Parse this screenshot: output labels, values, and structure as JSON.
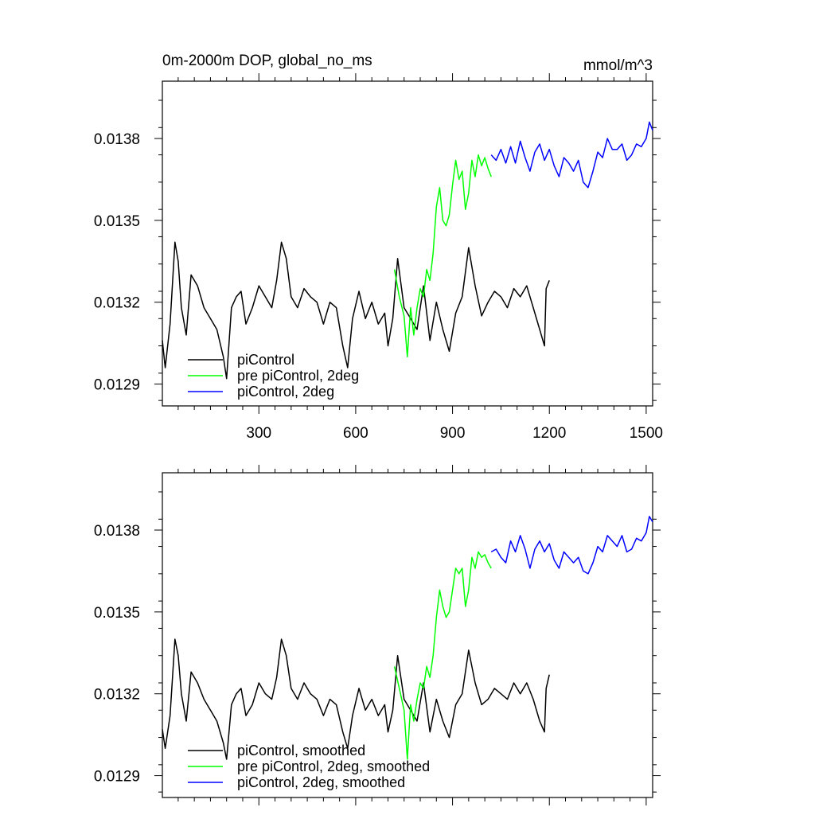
{
  "colors": {
    "piControl": "#000000",
    "pre_piControl_2deg": "#00ff00",
    "piControl_2deg": "#0000ff"
  },
  "chart_data": [
    {
      "type": "line",
      "title": "0m-2000m DOP, global_no_ms",
      "units": "mmol/m^3",
      "xlim": [
        1,
        1520
      ],
      "ylim": [
        0.01282,
        0.01401
      ],
      "xticks": [
        300,
        600,
        900,
        1200,
        1500
      ],
      "xtick_labels": [
        "300",
        "600",
        "900",
        "1200",
        "1500"
      ],
      "yticks": [
        0.0129,
        0.0132,
        0.0135,
        0.0138
      ],
      "ytick_labels": [
        "0.0129",
        "0.0132",
        "0.0135",
        "0.0138"
      ],
      "legend_position": "bottom-left",
      "series": [
        {
          "name": "piControl",
          "color": "#000000",
          "x": [
            1,
            10,
            25,
            40,
            50,
            60,
            75,
            90,
            110,
            130,
            150,
            170,
            190,
            200,
            215,
            230,
            245,
            260,
            280,
            300,
            320,
            340,
            355,
            370,
            385,
            400,
            420,
            440,
            460,
            480,
            500,
            520,
            540,
            560,
            575,
            590,
            610,
            630,
            650,
            670,
            690,
            700,
            715,
            730,
            750,
            770,
            790,
            810,
            830,
            850,
            870,
            890,
            910,
            930,
            950,
            970,
            990,
            1010,
            1030,
            1050,
            1070,
            1090,
            1110,
            1130,
            1150,
            1170,
            1185,
            1190,
            1200
          ],
          "y": [
            0.01306,
            0.01296,
            0.01312,
            0.01342,
            0.01335,
            0.01318,
            0.01308,
            0.0133,
            0.01326,
            0.01318,
            0.01314,
            0.0131,
            0.013,
            0.01292,
            0.01318,
            0.01322,
            0.01324,
            0.01312,
            0.01318,
            0.01326,
            0.01322,
            0.01318,
            0.01328,
            0.01342,
            0.01336,
            0.01322,
            0.01318,
            0.01325,
            0.01322,
            0.0132,
            0.01312,
            0.0132,
            0.01318,
            0.01304,
            0.01296,
            0.01314,
            0.01324,
            0.01314,
            0.0132,
            0.01312,
            0.01316,
            0.01304,
            0.01314,
            0.01336,
            0.01318,
            0.01314,
            0.0131,
            0.01326,
            0.01306,
            0.0132,
            0.0131,
            0.01302,
            0.01316,
            0.01322,
            0.0134,
            0.01326,
            0.01315,
            0.0132,
            0.01324,
            0.01322,
            0.01318,
            0.01325,
            0.01322,
            0.01326,
            0.01318,
            0.0131,
            0.01304,
            0.01325,
            0.01328
          ]
        },
        {
          "name": "pre piControl, 2deg",
          "color": "#00ff00",
          "x": [
            720,
            735,
            750,
            760,
            770,
            780,
            790,
            800,
            810,
            820,
            830,
            840,
            850,
            860,
            870,
            880,
            890,
            900,
            910,
            920,
            930,
            940,
            950,
            960,
            970,
            980,
            990,
            1000,
            1010,
            1020
          ],
          "y": [
            0.01332,
            0.01322,
            0.01315,
            0.013,
            0.01318,
            0.01308,
            0.01318,
            0.01325,
            0.01322,
            0.01332,
            0.01328,
            0.01338,
            0.01355,
            0.01362,
            0.0135,
            0.01348,
            0.01352,
            0.01363,
            0.01372,
            0.01365,
            0.01368,
            0.01354,
            0.0136,
            0.01372,
            0.01366,
            0.01374,
            0.0137,
            0.01373,
            0.01369,
            0.01366
          ]
        },
        {
          "name": "piControl, 2deg",
          "color": "#0000ff",
          "x": [
            1020,
            1035,
            1050,
            1065,
            1080,
            1095,
            1110,
            1125,
            1140,
            1155,
            1170,
            1185,
            1200,
            1215,
            1230,
            1245,
            1260,
            1275,
            1290,
            1305,
            1320,
            1335,
            1350,
            1365,
            1380,
            1395,
            1410,
            1425,
            1440,
            1455,
            1470,
            1485,
            1500,
            1510,
            1520
          ],
          "y": [
            0.01374,
            0.01372,
            0.01376,
            0.01371,
            0.01377,
            0.01371,
            0.01379,
            0.01373,
            0.01368,
            0.01375,
            0.01378,
            0.01372,
            0.01376,
            0.0137,
            0.01366,
            0.01373,
            0.01371,
            0.01368,
            0.01372,
            0.01364,
            0.01362,
            0.01368,
            0.01375,
            0.01373,
            0.0138,
            0.01376,
            0.01376,
            0.01378,
            0.01372,
            0.01374,
            0.01378,
            0.01377,
            0.0138,
            0.01386,
            0.01383
          ]
        }
      ]
    },
    {
      "type": "line",
      "title": "",
      "units": "",
      "xlim": [
        1,
        1520
      ],
      "ylim": [
        0.01282,
        0.01401
      ],
      "xticks": [
        300,
        600,
        900,
        1200,
        1500
      ],
      "xtick_labels": [],
      "yticks": [
        0.0129,
        0.0132,
        0.0135,
        0.0138
      ],
      "ytick_labels": [
        "0.0129",
        "0.0132",
        "0.0135",
        "0.0138"
      ],
      "legend_position": "bottom-left",
      "series": [
        {
          "name": "piControl, smoothed",
          "color": "#000000",
          "x": [
            1,
            10,
            25,
            40,
            50,
            60,
            75,
            90,
            110,
            130,
            150,
            170,
            190,
            200,
            215,
            230,
            245,
            260,
            280,
            300,
            320,
            340,
            355,
            370,
            385,
            400,
            420,
            440,
            460,
            480,
            500,
            520,
            540,
            560,
            575,
            590,
            610,
            630,
            650,
            670,
            690,
            700,
            715,
            730,
            750,
            770,
            790,
            810,
            830,
            850,
            870,
            890,
            910,
            930,
            950,
            970,
            990,
            1010,
            1030,
            1050,
            1070,
            1090,
            1110,
            1130,
            1150,
            1170,
            1185,
            1190,
            1200
          ],
          "y": [
            0.01307,
            0.013,
            0.01312,
            0.0134,
            0.01334,
            0.0132,
            0.0131,
            0.01328,
            0.01324,
            0.01318,
            0.01314,
            0.0131,
            0.01302,
            0.01296,
            0.01316,
            0.0132,
            0.01322,
            0.01312,
            0.01316,
            0.01324,
            0.0132,
            0.01318,
            0.01326,
            0.0134,
            0.01334,
            0.01322,
            0.01318,
            0.01324,
            0.0132,
            0.01318,
            0.01312,
            0.01318,
            0.01316,
            0.01306,
            0.013,
            0.01312,
            0.01322,
            0.01314,
            0.01318,
            0.01312,
            0.01316,
            0.01306,
            0.01314,
            0.01334,
            0.01318,
            0.01314,
            0.0131,
            0.01324,
            0.01306,
            0.01318,
            0.0131,
            0.01304,
            0.01316,
            0.0132,
            0.01336,
            0.01324,
            0.01316,
            0.01318,
            0.01322,
            0.0132,
            0.01318,
            0.01324,
            0.0132,
            0.01324,
            0.01318,
            0.0131,
            0.01306,
            0.01322,
            0.01327
          ]
        },
        {
          "name": "pre piControl, 2deg, smoothed",
          "color": "#00ff00",
          "x": [
            720,
            735,
            750,
            760,
            770,
            780,
            790,
            800,
            810,
            820,
            830,
            840,
            850,
            860,
            870,
            880,
            890,
            900,
            910,
            920,
            930,
            940,
            950,
            960,
            970,
            980,
            990,
            1000,
            1010,
            1020
          ],
          "y": [
            0.0133,
            0.01322,
            0.01314,
            0.01296,
            0.01316,
            0.0131,
            0.01318,
            0.01324,
            0.01322,
            0.0133,
            0.01326,
            0.01334,
            0.01348,
            0.01358,
            0.01352,
            0.01348,
            0.0135,
            0.01358,
            0.01366,
            0.01364,
            0.01366,
            0.01352,
            0.01358,
            0.0137,
            0.01366,
            0.01372,
            0.0137,
            0.01371,
            0.01368,
            0.01366
          ]
        },
        {
          "name": "piControl, 2deg, smoothed",
          "color": "#0000ff",
          "x": [
            1020,
            1035,
            1050,
            1065,
            1080,
            1095,
            1110,
            1125,
            1140,
            1155,
            1170,
            1185,
            1200,
            1215,
            1230,
            1245,
            1260,
            1275,
            1290,
            1305,
            1320,
            1335,
            1350,
            1365,
            1380,
            1395,
            1410,
            1425,
            1440,
            1455,
            1470,
            1485,
            1500,
            1510,
            1520
          ],
          "y": [
            0.01372,
            0.01373,
            0.0137,
            0.01368,
            0.01376,
            0.01372,
            0.01378,
            0.01373,
            0.01366,
            0.01373,
            0.01376,
            0.01372,
            0.01375,
            0.01369,
            0.01366,
            0.01372,
            0.0137,
            0.01368,
            0.0137,
            0.01365,
            0.01364,
            0.01368,
            0.01374,
            0.01372,
            0.01378,
            0.01376,
            0.01374,
            0.01378,
            0.01372,
            0.01373,
            0.01377,
            0.01376,
            0.01379,
            0.01385,
            0.01383
          ]
        }
      ]
    }
  ]
}
